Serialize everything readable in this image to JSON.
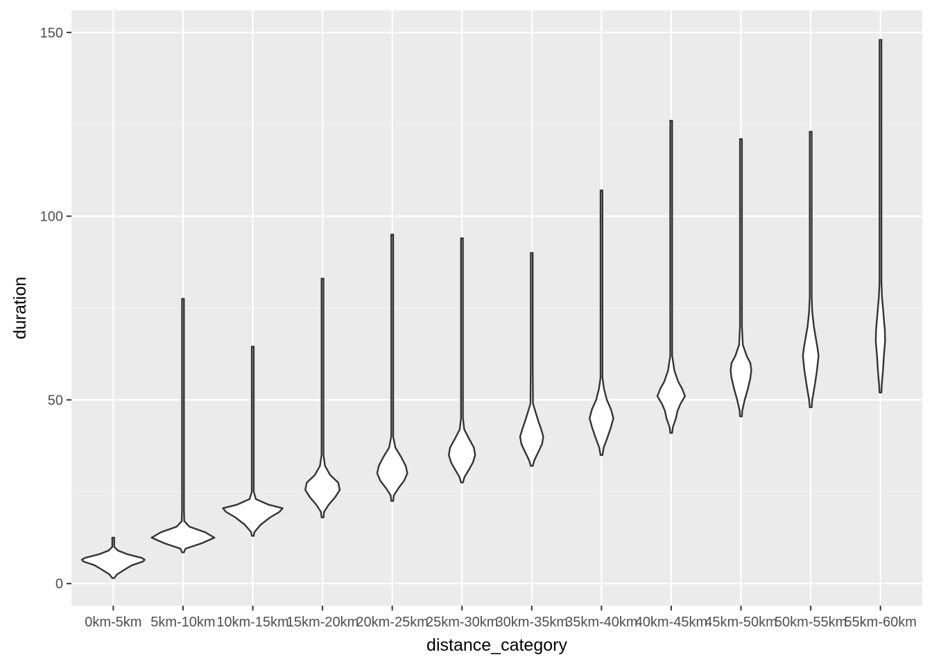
{
  "chart_data": {
    "type": "violin",
    "xlabel": "distance_category",
    "ylabel": "duration",
    "ylim": [
      -6,
      156
    ],
    "y_ticks": [
      0,
      50,
      100,
      150
    ],
    "grid": true,
    "legend": "none",
    "colors": {
      "panel_background": "#ebebeb",
      "grid_major": "#ffffff",
      "grid_minor": "#f5f5f5",
      "violin_fill": "#ffffff",
      "violin_outline": "#333333",
      "tick_label": "#4d4d4d"
    },
    "categories": [
      "0km-5km",
      "5km-10km",
      "10km-15km",
      "15km-20km",
      "20km-25km",
      "25km-30km",
      "30km-35km",
      "35km-40km",
      "40km-45km",
      "45km-50km",
      "50km-55km",
      "55km-60km"
    ],
    "violins": [
      {
        "category": "0km-5km",
        "min": 1.5,
        "max": 12.5,
        "profile": [
          [
            1.5,
            0
          ],
          [
            2.5,
            0.12
          ],
          [
            4,
            0.4
          ],
          [
            5,
            0.6
          ],
          [
            6,
            0.95
          ],
          [
            6.5,
            1.0
          ],
          [
            7,
            0.9
          ],
          [
            8,
            0.45
          ],
          [
            9,
            0.15
          ],
          [
            10,
            0.03
          ],
          [
            12.5,
            0
          ]
        ]
      },
      {
        "category": "5km-10km",
        "min": 8.5,
        "max": 77.5,
        "profile": [
          [
            8.5,
            0
          ],
          [
            9.5,
            0.08
          ],
          [
            11,
            0.6
          ],
          [
            12.5,
            1.0
          ],
          [
            14,
            0.7
          ],
          [
            15.5,
            0.2
          ],
          [
            17,
            0.04
          ],
          [
            20,
            0.02
          ],
          [
            25,
            0.01
          ],
          [
            30,
            0.015
          ],
          [
            35,
            0.005
          ],
          [
            77.5,
            0
          ]
        ]
      },
      {
        "category": "10km-15km",
        "min": 13,
        "max": 64.5,
        "profile": [
          [
            13,
            0
          ],
          [
            14,
            0.05
          ],
          [
            16,
            0.25
          ],
          [
            18,
            0.55
          ],
          [
            19.5,
            0.85
          ],
          [
            20.5,
            0.95
          ],
          [
            21.5,
            0.5
          ],
          [
            23,
            0.1
          ],
          [
            25,
            0.03
          ],
          [
            30,
            0.02
          ],
          [
            35,
            0.025
          ],
          [
            43,
            0.015
          ],
          [
            50,
            0.005
          ],
          [
            64.5,
            0
          ]
        ]
      },
      {
        "category": "15km-20km",
        "min": 18,
        "max": 83,
        "profile": [
          [
            18,
            0
          ],
          [
            19.5,
            0.05
          ],
          [
            21.5,
            0.2
          ],
          [
            23.5,
            0.4
          ],
          [
            25.5,
            0.55
          ],
          [
            27.5,
            0.5
          ],
          [
            29.5,
            0.25
          ],
          [
            32,
            0.08
          ],
          [
            35,
            0.03
          ],
          [
            45,
            0.012
          ],
          [
            63,
            0.01
          ],
          [
            83,
            0
          ]
        ]
      },
      {
        "category": "20km-25km",
        "min": 22.5,
        "max": 95,
        "profile": [
          [
            22.5,
            0
          ],
          [
            24,
            0.05
          ],
          [
            26,
            0.2
          ],
          [
            28,
            0.38
          ],
          [
            30,
            0.48
          ],
          [
            32,
            0.43
          ],
          [
            34.5,
            0.28
          ],
          [
            37,
            0.1
          ],
          [
            40,
            0.03
          ],
          [
            50,
            0.012
          ],
          [
            95,
            0
          ]
        ]
      },
      {
        "category": "25km-30km",
        "min": 27.5,
        "max": 94,
        "profile": [
          [
            27.5,
            0
          ],
          [
            29,
            0.08
          ],
          [
            31,
            0.22
          ],
          [
            33,
            0.35
          ],
          [
            35,
            0.42
          ],
          [
            37,
            0.38
          ],
          [
            39.5,
            0.22
          ],
          [
            42,
            0.07
          ],
          [
            45,
            0.02
          ],
          [
            60,
            0.01
          ],
          [
            94,
            0
          ]
        ]
      },
      {
        "category": "30km-35km",
        "min": 32,
        "max": 90,
        "profile": [
          [
            32,
            0
          ],
          [
            33.5,
            0.08
          ],
          [
            36,
            0.22
          ],
          [
            38,
            0.33
          ],
          [
            40,
            0.37
          ],
          [
            42,
            0.3
          ],
          [
            44.5,
            0.2
          ],
          [
            47,
            0.11
          ],
          [
            49,
            0.04
          ],
          [
            60,
            0.01
          ],
          [
            90,
            0
          ]
        ]
      },
      {
        "category": "35km-40km",
        "min": 35,
        "max": 107,
        "profile": [
          [
            35,
            0
          ],
          [
            37,
            0.07
          ],
          [
            40,
            0.2
          ],
          [
            42.5,
            0.3
          ],
          [
            45,
            0.38
          ],
          [
            47.5,
            0.3
          ],
          [
            50,
            0.17
          ],
          [
            53,
            0.08
          ],
          [
            56,
            0.03
          ],
          [
            65,
            0.01
          ],
          [
            107,
            0
          ]
        ]
      },
      {
        "category": "40km-45km",
        "min": 41,
        "max": 126,
        "profile": [
          [
            41,
            0
          ],
          [
            42.5,
            0.05
          ],
          [
            45,
            0.15
          ],
          [
            47,
            0.2
          ],
          [
            49,
            0.3
          ],
          [
            51,
            0.44
          ],
          [
            53,
            0.35
          ],
          [
            55,
            0.22
          ],
          [
            58,
            0.1
          ],
          [
            62,
            0.03
          ],
          [
            70,
            0.01
          ],
          [
            126,
            0
          ]
        ]
      },
      {
        "category": "45km-50km",
        "min": 45.5,
        "max": 121,
        "profile": [
          [
            45.5,
            0
          ],
          [
            47,
            0.04
          ],
          [
            50,
            0.12
          ],
          [
            53,
            0.22
          ],
          [
            56,
            0.3
          ],
          [
            58,
            0.33
          ],
          [
            60,
            0.3
          ],
          [
            62,
            0.18
          ],
          [
            65,
            0.06
          ],
          [
            70,
            0.02
          ],
          [
            121,
            0
          ]
        ]
      },
      {
        "category": "50km-55km",
        "min": 48,
        "max": 123,
        "profile": [
          [
            48,
            0
          ],
          [
            50,
            0.05
          ],
          [
            54,
            0.13
          ],
          [
            58,
            0.2
          ],
          [
            62,
            0.25
          ],
          [
            64,
            0.22
          ],
          [
            67,
            0.16
          ],
          [
            70,
            0.1
          ],
          [
            74,
            0.05
          ],
          [
            78,
            0.03
          ],
          [
            82,
            0.015
          ],
          [
            123,
            0
          ]
        ]
      },
      {
        "category": "55km-60km",
        "min": 52,
        "max": 148,
        "profile": [
          [
            52,
            0
          ],
          [
            54,
            0.04
          ],
          [
            58,
            0.08
          ],
          [
            62,
            0.11
          ],
          [
            66,
            0.15
          ],
          [
            69,
            0.14
          ],
          [
            72,
            0.11
          ],
          [
            75,
            0.08
          ],
          [
            78,
            0.05
          ],
          [
            82,
            0.02
          ],
          [
            90,
            0.005
          ],
          [
            148,
            0
          ]
        ]
      }
    ]
  }
}
